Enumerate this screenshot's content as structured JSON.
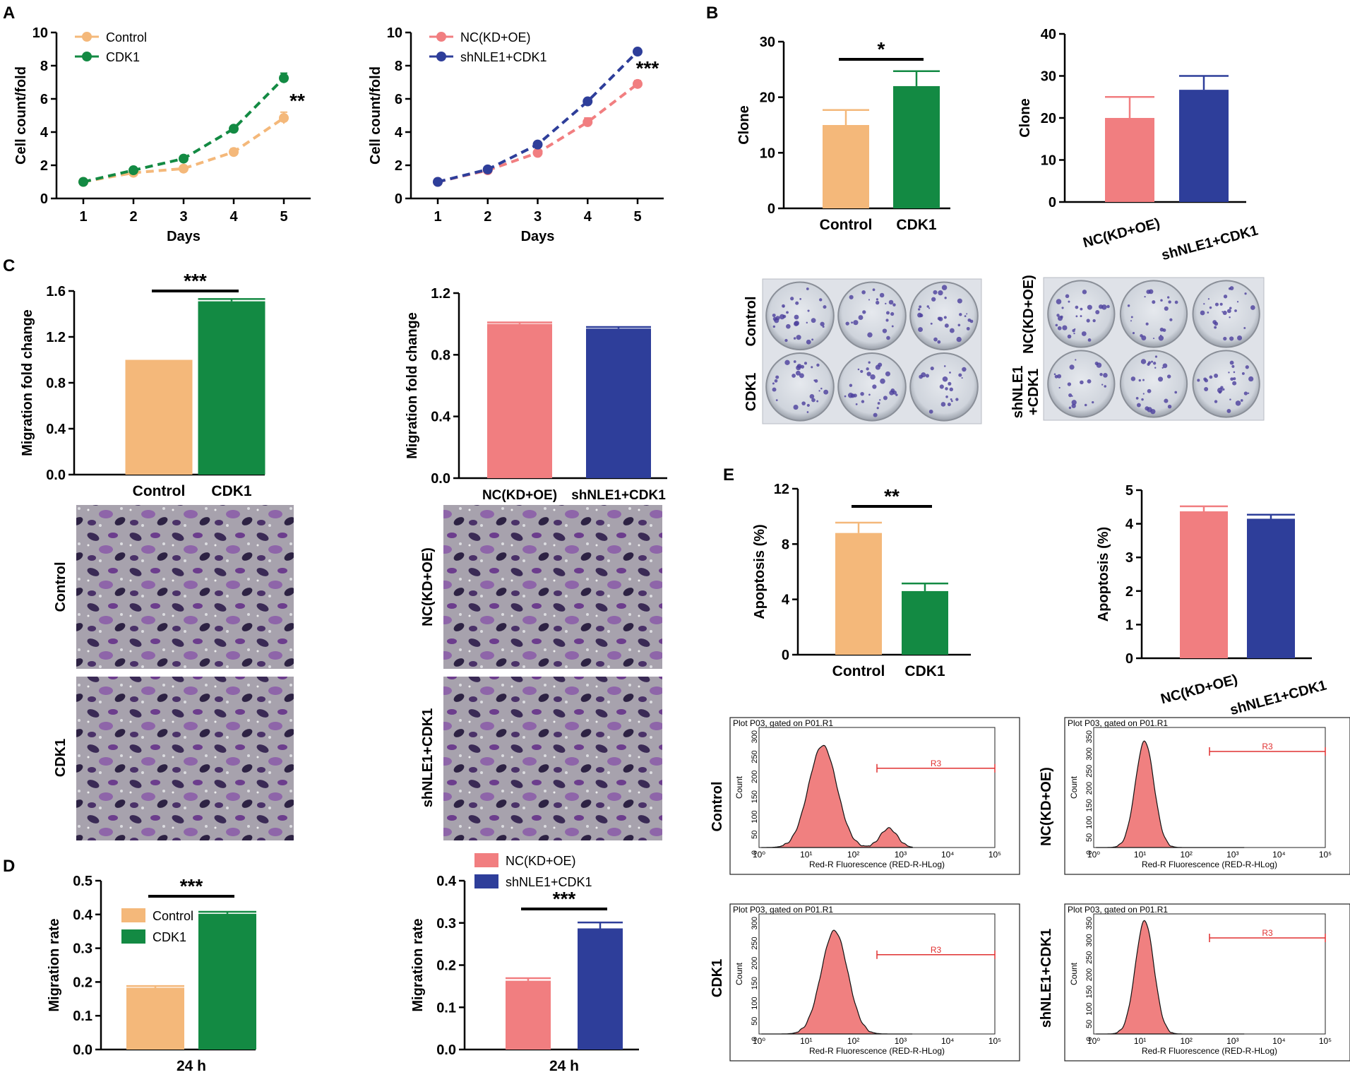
{
  "figure": {
    "panels": {
      "A": "A",
      "B": "B",
      "C": "C",
      "D": "D",
      "E": "E"
    },
    "colors": {
      "control": "#F4B87A",
      "cdk1": "#138A43",
      "nc": "#F17E80",
      "sh": "#2E3E9A",
      "hist": "#F08080",
      "gate": "#E03030"
    },
    "images": {
      "clone_control": "Control",
      "clone_cdk1": "CDK1",
      "clone_nc": "NC(KD+OE)",
      "clone_sh_line1": "shNLE1",
      "clone_sh_line2": "+CDK1",
      "mig_control": "Control",
      "mig_cdk1": "CDK1",
      "mig_nc": "NC(KD+OE)",
      "mig_sh": "shNLE1+CDK1",
      "flow_control": "Control",
      "flow_cdk1": "CDK1",
      "flow_nc": "NC(KD+OE)",
      "flow_sh": "shNLE1+CDK1"
    },
    "flow": {
      "plot_title": "Plot P03, gated on P01.R1",
      "xlabel": "Red-R Fluorescence (RED-R-HLog)",
      "ylabel": "Count",
      "gate_label": "R3",
      "x_tick_labels": [
        "10⁰",
        "10¹",
        "10²",
        "10³",
        "10⁴",
        "10⁵"
      ],
      "left_yticks": [
        "0",
        "50",
        "100",
        "150",
        "200",
        "250",
        "300"
      ],
      "right_yticks": [
        "0",
        "50",
        "100",
        "150",
        "200",
        "250",
        "300",
        "350"
      ]
    }
  },
  "chart_data": [
    {
      "id": "A1",
      "type": "line",
      "xlabel": "Days",
      "ylabel": "Cell count/fold",
      "x": [
        1,
        2,
        3,
        4,
        5
      ],
      "ylim": [
        0,
        10
      ],
      "yticks": [
        0,
        2,
        4,
        6,
        8,
        10
      ],
      "xticks": [
        1,
        2,
        3,
        4,
        5
      ],
      "series": [
        {
          "name": "Control",
          "values": [
            1.0,
            1.55,
            1.8,
            2.8,
            4.85
          ],
          "errors": [
            0.05,
            0.08,
            0.1,
            0.2,
            0.35
          ]
        },
        {
          "name": "CDK1",
          "values": [
            1.0,
            1.7,
            2.4,
            4.2,
            7.25
          ],
          "errors": [
            0.05,
            0.08,
            0.1,
            0.12,
            0.3
          ]
        }
      ],
      "annotation": "**"
    },
    {
      "id": "A2",
      "type": "line",
      "xlabel": "Days",
      "ylabel": "Cell count/fold",
      "x": [
        1,
        2,
        3,
        4,
        5
      ],
      "ylim": [
        0,
        10
      ],
      "yticks": [
        0,
        2,
        4,
        6,
        8,
        10
      ],
      "xticks": [
        1,
        2,
        3,
        4,
        5
      ],
      "series": [
        {
          "name": "NC(KD+OE)",
          "values": [
            1.0,
            1.7,
            2.75,
            4.6,
            6.9
          ],
          "errors": [
            0.05,
            0.08,
            0.1,
            0.25,
            0.2
          ]
        },
        {
          "name": "shNLE1+CDK1",
          "values": [
            1.0,
            1.75,
            3.25,
            5.85,
            8.85
          ],
          "errors": [
            0.05,
            0.08,
            0.1,
            0.1,
            0.1
          ]
        }
      ],
      "annotation": "***"
    },
    {
      "id": "B1",
      "type": "bar",
      "ylabel": "Clone",
      "categories": [
        "Control",
        "CDK1"
      ],
      "values": [
        15,
        22
      ],
      "errors": [
        2.7,
        2.7
      ],
      "ylim": [
        0,
        30
      ],
      "yticks": [
        0,
        10,
        20,
        30
      ],
      "annotation": "*"
    },
    {
      "id": "B2",
      "type": "bar",
      "ylabel": "Clone",
      "categories": [
        "NC(KD+OE)",
        "shNLE1+CDK1"
      ],
      "values": [
        20,
        26.7
      ],
      "errors": [
        5,
        3.3
      ],
      "ylim": [
        0,
        40
      ],
      "yticks": [
        0,
        10,
        20,
        30,
        40
      ]
    },
    {
      "id": "C1",
      "type": "bar",
      "ylabel": "Migration fold change",
      "categories": [
        "Control",
        "CDK1"
      ],
      "values": [
        1.0,
        1.51
      ],
      "errors": [
        0,
        0.02
      ],
      "ylim": [
        0,
        1.6
      ],
      "yticks": [
        "0.0",
        "0.4",
        "0.8",
        "1.2",
        "1.6"
      ],
      "annotation": "***"
    },
    {
      "id": "C2",
      "type": "bar",
      "ylabel": "Migration fold change",
      "categories": [
        "NC(KD+OE)",
        "shNLE1+CDK1"
      ],
      "values": [
        1.0,
        0.97
      ],
      "errors": [
        0.01,
        0.01
      ],
      "ylim": [
        0,
        1.2
      ],
      "yticks": [
        "0.0",
        "0.4",
        "0.8",
        "1.2"
      ]
    },
    {
      "id": "D1",
      "type": "bar",
      "ylabel": "Migration rate",
      "xlabel": "24 h",
      "categories": [
        "Control",
        "CDK1"
      ],
      "values": [
        0.183,
        0.402
      ],
      "errors": [
        0.005,
        0.006
      ],
      "ylim": [
        0,
        0.5
      ],
      "yticks": [
        "0.0",
        "0.1",
        "0.2",
        "0.3",
        "0.4",
        "0.5"
      ],
      "annotation": "***"
    },
    {
      "id": "D2",
      "type": "bar",
      "ylabel": "Migration rate",
      "xlabel": "24 h",
      "categories": [
        "NC(KD+OE)",
        "shNLE1+CDK1"
      ],
      "values": [
        0.163,
        0.287
      ],
      "errors": [
        0.006,
        0.014
      ],
      "ylim": [
        0,
        0.4
      ],
      "yticks": [
        "0.0",
        "0.1",
        "0.2",
        "0.3",
        "0.4"
      ],
      "annotation": "***"
    },
    {
      "id": "E1",
      "type": "bar",
      "ylabel": "Apoptosis (%)",
      "categories": [
        "Control",
        "CDK1"
      ],
      "values": [
        8.8,
        4.6
      ],
      "errors": [
        0.75,
        0.55
      ],
      "ylim": [
        0,
        12
      ],
      "yticks": [
        0,
        4,
        8,
        12
      ],
      "annotation": "**"
    },
    {
      "id": "E2",
      "type": "bar",
      "ylabel": "Apoptosis (%)",
      "categories": [
        "NC(KD+OE)",
        "shNLE1+CDK1"
      ],
      "values": [
        4.37,
        4.15
      ],
      "errors": [
        0.15,
        0.12
      ],
      "ylim": [
        0,
        5
      ],
      "yticks": [
        0,
        1,
        2,
        3,
        4,
        5
      ]
    }
  ]
}
